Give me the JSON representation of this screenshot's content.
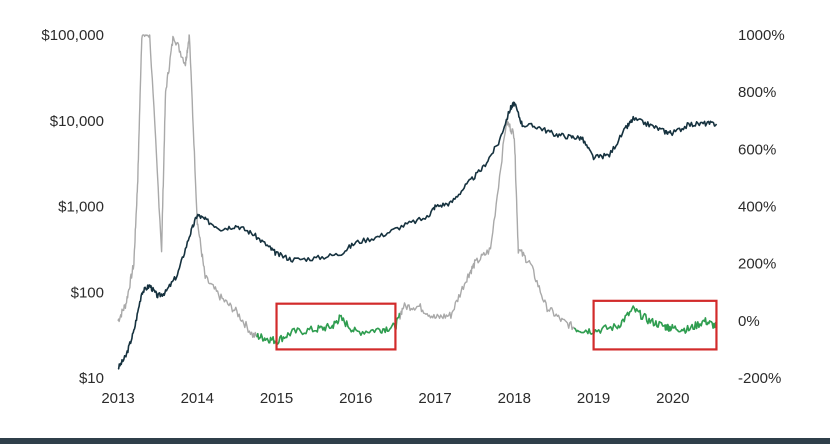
{
  "chart_data": {
    "type": "line",
    "title": "",
    "xlabel": "",
    "ylabel": "",
    "x_tick_labels": [
      "2013",
      "2014",
      "2015",
      "2016",
      "2017",
      "2018",
      "2019",
      "2020"
    ],
    "left_axis": {
      "scale": "log",
      "ylim": [
        10,
        100000
      ],
      "tick_labels": [
        "$100,000",
        "$10,000",
        "$1,000",
        "$100",
        "$10"
      ]
    },
    "right_axis": {
      "scale": "linear",
      "ylim": [
        -200,
        1000
      ],
      "tick_labels": [
        "1000%",
        "800%",
        "600%",
        "400%",
        "200%",
        "0%",
        "-200%"
      ]
    },
    "series": [
      {
        "color": "#16323f",
        "axis": "left",
        "x": [
          2013.0,
          2013.1,
          2013.2,
          2013.3,
          2013.4,
          2013.5,
          2013.6,
          2013.75,
          2013.9,
          2014.0,
          2014.1,
          2014.3,
          2014.5,
          2014.7,
          2014.9,
          2015.0,
          2015.2,
          2015.5,
          2015.8,
          2016.0,
          2016.3,
          2016.6,
          2016.9,
          2017.0,
          2017.2,
          2017.4,
          2017.6,
          2017.8,
          2017.95,
          2018.0,
          2018.1,
          2018.3,
          2018.5,
          2018.7,
          2018.85,
          2019.0,
          2019.2,
          2019.4,
          2019.5,
          2019.7,
          2019.9,
          2020.0,
          2020.2,
          2020.4,
          2020.55
        ],
        "values": [
          13,
          18,
          35,
          100,
          120,
          90,
          100,
          160,
          450,
          800,
          700,
          550,
          600,
          480,
          340,
          280,
          240,
          250,
          280,
          380,
          450,
          600,
          750,
          1000,
          1100,
          1800,
          2800,
          5500,
          14000,
          16000,
          9000,
          8500,
          7000,
          6500,
          6300,
          3700,
          4000,
          8000,
          10500,
          9000,
          7500,
          7200,
          9000,
          9300,
          9200
        ]
      },
      {
        "color": "#a9a9a9",
        "axis": "right",
        "x": [
          2013.0,
          2013.1,
          2013.2,
          2013.25,
          2013.3,
          2013.4,
          2013.55,
          2013.6,
          2013.7,
          2013.85,
          2013.9,
          2014.0,
          2014.1,
          2014.3,
          2014.5,
          2014.7,
          2014.85,
          2015.0,
          2015.2,
          2015.5,
          2015.7,
          2015.8,
          2016.0,
          2016.3,
          2016.5,
          2016.6,
          2016.8,
          2017.0,
          2017.2,
          2017.4,
          2017.5,
          2017.7,
          2017.9,
          2018.0,
          2018.05,
          2018.2,
          2018.4,
          2018.6,
          2018.8,
          2019.0,
          2019.3,
          2019.5,
          2019.7,
          2019.9,
          2020.0,
          2020.2,
          2020.4,
          2020.55
        ],
        "values": [
          0,
          60,
          200,
          500,
          1000,
          1000,
          250,
          800,
          1000,
          900,
          1000,
          350,
          150,
          80,
          30,
          -50,
          -60,
          -70,
          -40,
          -30,
          -20,
          10,
          -40,
          -30,
          -20,
          50,
          50,
          10,
          20,
          150,
          200,
          250,
          700,
          650,
          250,
          200,
          50,
          0,
          -30,
          -35,
          -20,
          40,
          0,
          -20,
          -25,
          -30,
          0,
          -20
        ]
      }
    ],
    "highlight_spans": [
      {
        "x": [
          2015.0,
          2016.5
        ],
        "y": [
          -100,
          60
        ]
      },
      {
        "x": [
          2019.0,
          2020.55
        ],
        "y": [
          -100,
          70
        ]
      }
    ],
    "grid": false,
    "legend": "none"
  }
}
